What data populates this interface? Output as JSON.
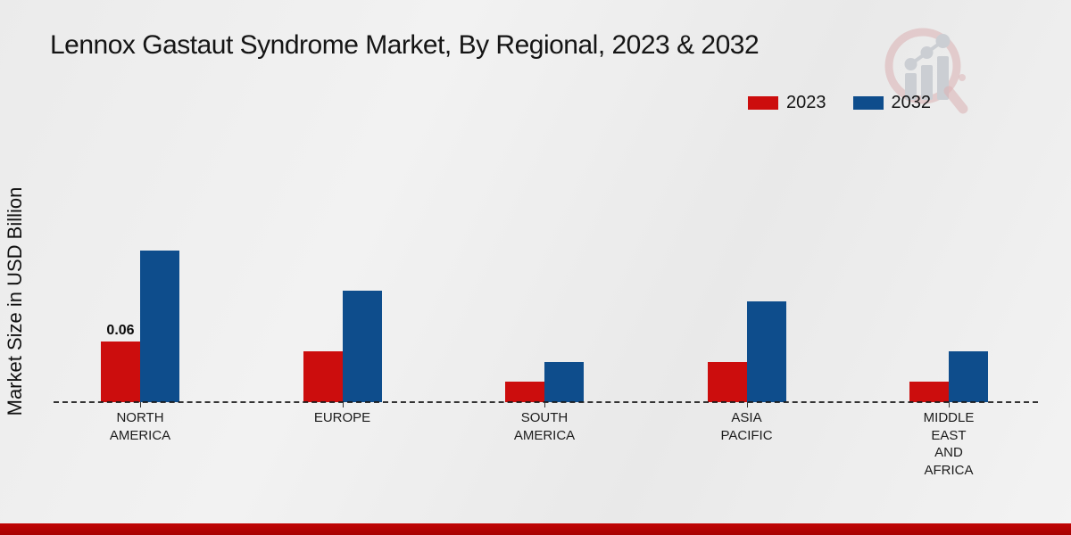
{
  "page": {
    "title": "Lennox Gastaut Syndrome Market, By Regional, 2023 & 2032"
  },
  "chart_data": {
    "type": "bar",
    "title": "Lennox Gastaut Syndrome Market, By Regional, 2023 & 2032",
    "xlabel": "",
    "ylabel": "Market Size in USD Billion",
    "categories": [
      "NORTH\nAMERICA",
      "EUROPE",
      "SOUTH\nAMERICA",
      "ASIA\nPACIFIC",
      "MIDDLE\nEAST\nAND\nAFRICA"
    ],
    "series": [
      {
        "name": "2023",
        "color": "#CC0D0D",
        "values": [
          0.06,
          0.05,
          0.02,
          0.04,
          0.02
        ]
      },
      {
        "name": "2032",
        "color": "#0E4D8C",
        "values": [
          0.15,
          0.11,
          0.04,
          0.1,
          0.05
        ]
      }
    ],
    "annotations": [
      {
        "series": 0,
        "group": 0,
        "text": "0.06"
      }
    ],
    "axis": {
      "y_axis_ticks_visible": false,
      "grid": false,
      "baseline_style": "dashed",
      "legend_position": "top-right"
    }
  },
  "colors": {
    "series_2023": "#CC0D0D",
    "series_2032": "#0E4D8C",
    "footer_stripe": "#B80404",
    "background": "#EDEDED",
    "text": "#151515"
  },
  "watermark": {
    "icon": "bar-chart-magnifier-logo"
  }
}
